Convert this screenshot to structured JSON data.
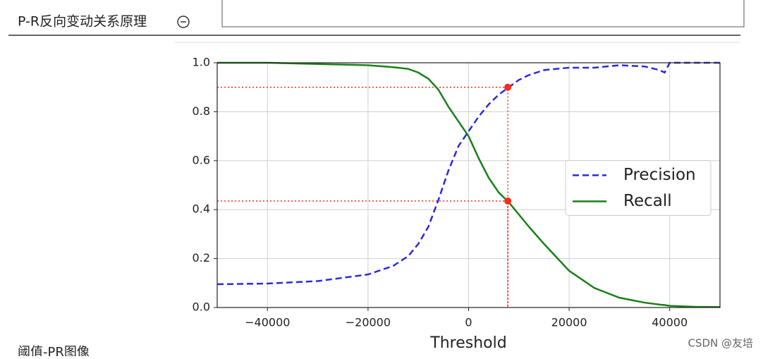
{
  "header": {
    "title": "P-R反向变动关系原理"
  },
  "next_section": {
    "title": "阈值-PR图像"
  },
  "watermark": "CSDN @友培",
  "chart_data": {
    "type": "line",
    "xlabel": "Threshold",
    "grid": true,
    "legend": "center right",
    "xlim": [
      -50000,
      50000
    ],
    "ylim": [
      0,
      1
    ],
    "xticks": [
      {
        "value": -40000,
        "label": "−40000"
      },
      {
        "value": -20000,
        "label": "−20000"
      },
      0,
      20000,
      40000
    ],
    "yticks": [
      {
        "value": 0,
        "label": "0.0"
      },
      {
        "value": 0.2,
        "label": "0.2"
      },
      {
        "value": 0.4,
        "label": "0.4"
      },
      {
        "value": 0.6,
        "label": "0.6"
      },
      {
        "value": 0.8,
        "label": "0.8"
      },
      {
        "value": 1,
        "label": "1.0"
      }
    ],
    "x": [
      -50000,
      -40000,
      -30000,
      -20000,
      -15000,
      -12000,
      -10000,
      -8000,
      -6000,
      -4000,
      -2000,
      0,
      2000,
      4000,
      6000,
      8000,
      10000,
      12000,
      15000,
      20000,
      25000,
      30000,
      35000,
      38000,
      39000,
      40000,
      45000,
      50000
    ],
    "series": [
      {
        "name": "Precision",
        "color": "#2a2ae0",
        "linestyle": "dashed",
        "values": [
          0.095,
          0.098,
          0.108,
          0.135,
          0.17,
          0.21,
          0.26,
          0.33,
          0.44,
          0.56,
          0.66,
          0.72,
          0.78,
          0.83,
          0.87,
          0.9,
          0.93,
          0.95,
          0.97,
          0.98,
          0.98,
          0.99,
          0.985,
          0.97,
          0.96,
          1,
          1,
          1
        ]
      },
      {
        "name": "Recall",
        "color": "#1a7f1a",
        "linestyle": "solid",
        "values": [
          1,
          1,
          0.995,
          0.99,
          0.982,
          0.975,
          0.96,
          0.935,
          0.89,
          0.82,
          0.76,
          0.7,
          0.61,
          0.53,
          0.47,
          0.43,
          0.38,
          0.33,
          0.26,
          0.15,
          0.08,
          0.04,
          0.02,
          0.012,
          0.01,
          0.007,
          0.003,
          0.002
        ]
      }
    ],
    "threshold_marker": {
      "x": 7800,
      "precision": 0.9,
      "recall": 0.435,
      "color": "#ff2a1a"
    }
  }
}
